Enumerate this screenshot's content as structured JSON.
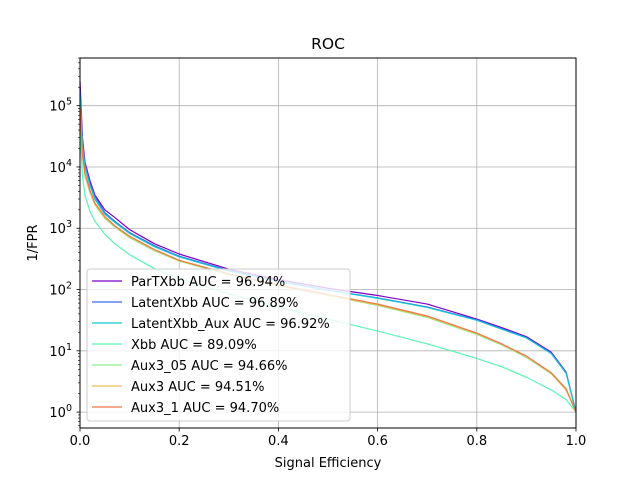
{
  "chart_data": {
    "type": "line",
    "title": "ROC",
    "xlabel": "Signal Efficiency",
    "ylabel": "1/FPR",
    "xlim": [
      0.0,
      1.0
    ],
    "ylim": [
      0.55,
      600000
    ],
    "yscale": "log",
    "grid": true,
    "legend_position": "lower-left",
    "x_ticks": [
      0.0,
      0.2,
      0.4,
      0.6,
      0.8,
      1.0
    ],
    "x_tick_labels": [
      "0.0",
      "0.2",
      "0.4",
      "0.6",
      "0.8",
      "1.0"
    ],
    "y_ticks": [
      {
        "value": 1,
        "base": "10",
        "exp": "0"
      },
      {
        "value": 10,
        "base": "10",
        "exp": "1"
      },
      {
        "value": 100,
        "base": "10",
        "exp": "2"
      },
      {
        "value": 1000,
        "base": "10",
        "exp": "3"
      },
      {
        "value": 10000,
        "base": "10",
        "exp": "4"
      },
      {
        "value": 100000,
        "base": "10",
        "exp": "5"
      }
    ],
    "series": [
      {
        "name": "ParTXbb AUC = 96.94%",
        "color": "#7a00c8",
        "x": [
          0.0,
          0.005,
          0.01,
          0.02,
          0.03,
          0.05,
          0.07,
          0.1,
          0.15,
          0.2,
          0.3,
          0.4,
          0.5,
          0.6,
          0.7,
          0.8,
          0.85,
          0.9,
          0.95,
          0.98,
          1.0
        ],
        "y": [
          250000,
          30000,
          12000,
          6000,
          3500,
          2000,
          1500,
          950,
          560,
          380,
          215,
          145,
          105,
          80,
          58,
          33,
          24,
          17,
          9.5,
          4.5,
          1.0
        ]
      },
      {
        "name": "LatentXbb AUC = 96.89%",
        "color": "#3c64f0",
        "x": [
          0.0,
          0.005,
          0.01,
          0.02,
          0.03,
          0.05,
          0.07,
          0.1,
          0.15,
          0.2,
          0.3,
          0.4,
          0.5,
          0.6,
          0.7,
          0.8,
          0.85,
          0.9,
          0.95,
          0.98,
          1.0
        ],
        "y": [
          200000,
          25000,
          11000,
          5500,
          3300,
          1800,
          1300,
          850,
          520,
          350,
          205,
          138,
          98,
          73,
          52,
          32,
          23,
          16.5,
          9.2,
          4.4,
          1.0
        ]
      },
      {
        "name": "LatentXbb_Aux AUC = 96.92%",
        "color": "#14c8d2",
        "x": [
          0.0,
          0.005,
          0.01,
          0.02,
          0.03,
          0.05,
          0.07,
          0.1,
          0.15,
          0.2,
          0.3,
          0.4,
          0.5,
          0.6,
          0.7,
          0.8,
          0.85,
          0.9,
          0.95,
          0.98,
          1.0
        ],
        "y": [
          150000,
          22000,
          10000,
          5000,
          3000,
          1700,
          1250,
          820,
          500,
          340,
          200,
          135,
          97,
          72,
          51,
          31.5,
          22.5,
          16.2,
          9.0,
          4.3,
          1.0
        ]
      },
      {
        "name": "Xbb AUC = 89.09%",
        "color": "#5af5b4",
        "x": [
          0.0,
          0.005,
          0.01,
          0.02,
          0.03,
          0.05,
          0.07,
          0.1,
          0.15,
          0.2,
          0.3,
          0.4,
          0.5,
          0.6,
          0.7,
          0.8,
          0.85,
          0.9,
          0.95,
          0.98,
          1.0
        ],
        "y": [
          40000,
          7000,
          3500,
          1900,
          1300,
          800,
          560,
          370,
          220,
          150,
          85,
          52,
          33,
          21,
          13,
          7.5,
          5.5,
          3.7,
          2.3,
          1.6,
          1.0
        ]
      },
      {
        "name": "Aux3_05 AUC = 94.66%",
        "color": "#8cf08c",
        "x": [
          0.0,
          0.005,
          0.01,
          0.02,
          0.03,
          0.05,
          0.07,
          0.1,
          0.15,
          0.2,
          0.3,
          0.4,
          0.5,
          0.6,
          0.7,
          0.8,
          0.85,
          0.9,
          0.95,
          0.98,
          1.0
        ],
        "y": [
          80000,
          14000,
          7000,
          3800,
          2400,
          1450,
          1050,
          700,
          430,
          290,
          175,
          115,
          80,
          55,
          35,
          18.5,
          12.5,
          7.8,
          4.2,
          2.3,
          1.0
        ]
      },
      {
        "name": "Aux3 AUC = 94.51%",
        "color": "#e6be5a",
        "x": [
          0.0,
          0.005,
          0.01,
          0.02,
          0.03,
          0.05,
          0.07,
          0.1,
          0.15,
          0.2,
          0.3,
          0.4,
          0.5,
          0.6,
          0.7,
          0.8,
          0.85,
          0.9,
          0.95,
          0.98,
          1.0
        ],
        "y": [
          90000,
          15000,
          7500,
          4000,
          2500,
          1500,
          1080,
          720,
          440,
          295,
          178,
          117,
          81,
          56,
          36,
          19,
          12.8,
          8.0,
          4.3,
          2.3,
          1.0
        ]
      },
      {
        "name": "Aux3_1 AUC = 94.70%",
        "color": "#f07846",
        "x": [
          0.0,
          0.005,
          0.01,
          0.02,
          0.03,
          0.05,
          0.07,
          0.1,
          0.15,
          0.2,
          0.3,
          0.4,
          0.5,
          0.6,
          0.7,
          0.8,
          0.85,
          0.9,
          0.95,
          0.98,
          1.0
        ],
        "y": [
          100000,
          16000,
          8000,
          4200,
          2600,
          1550,
          1100,
          740,
          450,
          300,
          180,
          118,
          83,
          58,
          37,
          19.5,
          13.0,
          8.2,
          4.4,
          2.4,
          1.0
        ]
      }
    ]
  }
}
